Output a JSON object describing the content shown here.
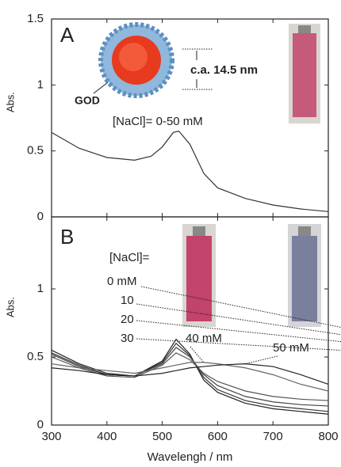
{
  "chart_data": [
    {
      "type": "line",
      "panel_label": "A",
      "ylabel": "Abs.",
      "annotations": [
        "GOD",
        "c.a. 14.5 nm",
        "[NaCl]= 0-50 mM"
      ],
      "x": [
        300,
        350,
        400,
        450,
        480,
        500,
        520,
        530,
        550,
        575,
        600,
        650,
        700,
        750,
        800
      ],
      "series": [
        {
          "color": "#333333",
          "values": [
            0.64,
            0.52,
            0.45,
            0.43,
            0.46,
            0.53,
            0.64,
            0.65,
            0.55,
            0.33,
            0.22,
            0.14,
            0.09,
            0.06,
            0.04
          ]
        }
      ],
      "xlim": [
        300,
        800
      ],
      "xticks": [
        300,
        400,
        500,
        600,
        700,
        800
      ],
      "ylim": [
        0,
        1.5
      ],
      "yticks": [
        0,
        0.5,
        1,
        1.5
      ]
    },
    {
      "type": "line",
      "panel_label": "B",
      "ylabel": "Abs.",
      "xlabel": "Wavelengh / nm",
      "annotations": [
        "[NaCl]="
      ],
      "x": [
        300,
        350,
        400,
        450,
        500,
        525,
        550,
        575,
        600,
        650,
        700,
        750,
        800
      ],
      "series": [
        {
          "name": "0 mM",
          "color": "#222222",
          "values": [
            0.55,
            0.45,
            0.38,
            0.36,
            0.47,
            0.63,
            0.52,
            0.33,
            0.24,
            0.16,
            0.12,
            0.1,
            0.08
          ]
        },
        {
          "name": "10",
          "color": "#333333",
          "values": [
            0.53,
            0.44,
            0.37,
            0.36,
            0.46,
            0.6,
            0.51,
            0.35,
            0.26,
            0.18,
            0.14,
            0.12,
            0.1
          ]
        },
        {
          "name": "20",
          "color": "#444444",
          "values": [
            0.52,
            0.43,
            0.37,
            0.36,
            0.45,
            0.57,
            0.5,
            0.37,
            0.29,
            0.21,
            0.17,
            0.15,
            0.14
          ]
        },
        {
          "name": "30",
          "color": "#555555",
          "values": [
            0.5,
            0.42,
            0.36,
            0.35,
            0.44,
            0.53,
            0.48,
            0.38,
            0.32,
            0.25,
            0.21,
            0.19,
            0.18
          ]
        },
        {
          "name": "40 mM",
          "color": "#666666",
          "values": [
            0.45,
            0.42,
            0.4,
            0.38,
            0.42,
            0.44,
            0.46,
            0.46,
            0.45,
            0.42,
            0.37,
            0.3,
            0.25
          ]
        },
        {
          "name": "50 mM",
          "color": "#222222",
          "values": [
            0.42,
            0.4,
            0.37,
            0.36,
            0.38,
            0.4,
            0.42,
            0.43,
            0.44,
            0.45,
            0.43,
            0.37,
            0.3
          ]
        }
      ],
      "xlim": [
        300,
        800
      ],
      "xticks": [
        300,
        400,
        500,
        600,
        700,
        800
      ],
      "ylim": [
        0,
        1.5
      ],
      "yticks": [
        0,
        0.5,
        1
      ]
    }
  ]
}
